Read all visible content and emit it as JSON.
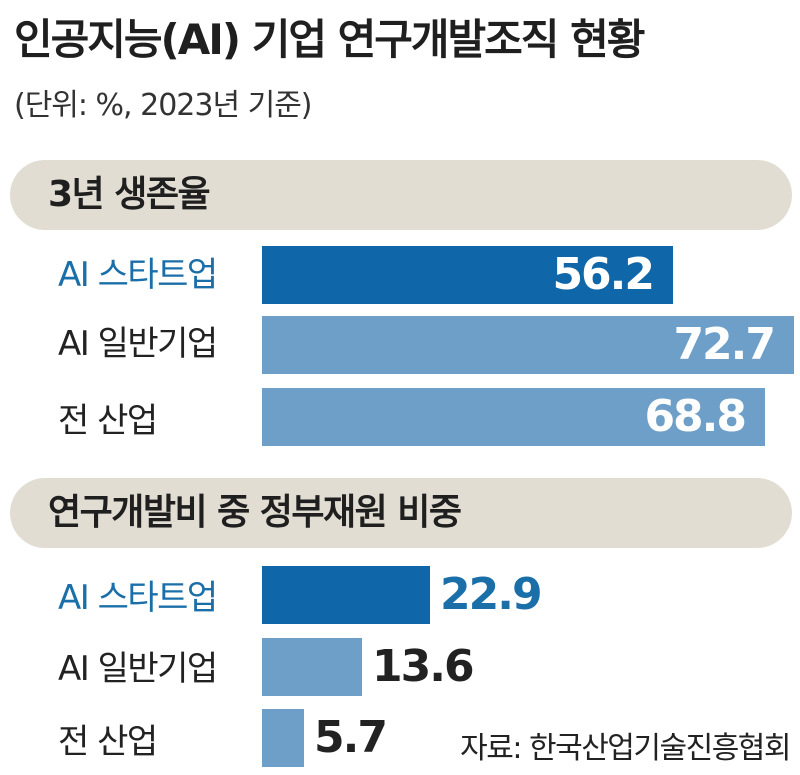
{
  "title": "인공지능(AI) 기업 연구개발조직 현황",
  "unit_note": "(단위: %, 2023년 기준)",
  "source": "자료: 한국산업기술진흥협회",
  "colors": {
    "startup_bar": "#0f66a8",
    "other_bar": "#6d9fc8",
    "highlight_text": "#1b6fa8",
    "header_bg": "#e2ddd3"
  },
  "chart_data": [
    {
      "type": "bar",
      "orientation": "horizontal",
      "title": "3년 생존율",
      "categories": [
        "AI 스타트업",
        "AI 일반기업",
        "전 산업"
      ],
      "values": [
        56.2,
        72.7,
        68.8
      ],
      "value_labels": [
        "56.2",
        "72.7",
        "68.8"
      ],
      "highlight_category": "AI 스타트업"
    },
    {
      "type": "bar",
      "orientation": "horizontal",
      "title": "연구개발비 중 정부재원 비중",
      "categories": [
        "AI 스타트업",
        "AI 일반기업",
        "전 산업"
      ],
      "values": [
        22.9,
        13.6,
        5.7
      ],
      "value_labels": [
        "22.9",
        "13.6",
        "5.7"
      ],
      "highlight_category": "AI 스타트업"
    }
  ]
}
